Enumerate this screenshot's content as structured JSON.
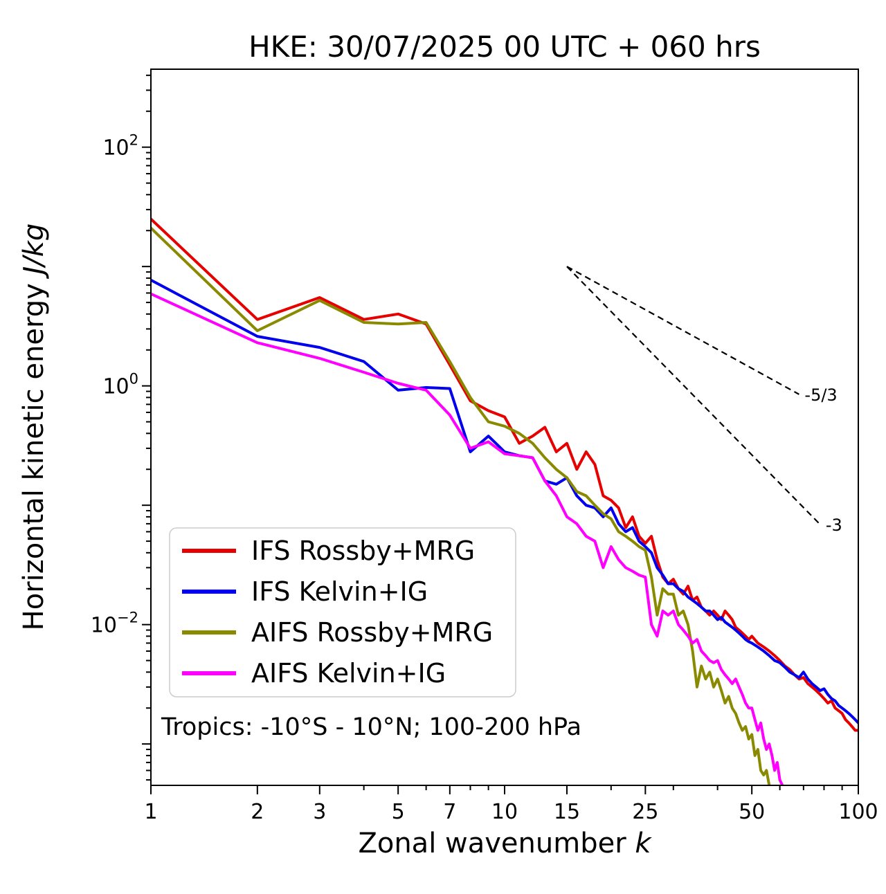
{
  "title": "HKE: 30/07/2025 00 UTC + 060 hrs",
  "annotation": "Tropics: -10°S - 10°N; 100-200 hPa",
  "labels": {
    "xlabel_main": "Zonal wavenumber ",
    "xlabel_italic": "k",
    "ylabel_main": "Horizontal kinetic energy ",
    "ylabel_italic": "J/kg"
  },
  "legend": {
    "position": "lower left",
    "items": [
      {
        "label": "IFS Rossby+MRG",
        "color": "#e60000"
      },
      {
        "label": "IFS Kelvin+IG",
        "color": "#0000ee"
      },
      {
        "label": "AIFS Rossby+MRG",
        "color": "#8a8a00"
      },
      {
        "label": "AIFS Kelvin+IG",
        "color": "#ff00ff"
      }
    ]
  },
  "chart_data": {
    "type": "line",
    "title": "HKE: 30/07/2025 00 UTC + 060 hrs",
    "xlabel": "Zonal wavenumber k",
    "ylabel": "Horizontal kinetic energy J/kg",
    "xscale": "log",
    "yscale": "log",
    "xlim": [
      1,
      100
    ],
    "ylim": [
      0.00045,
      450
    ],
    "grid": false,
    "legend_position": "lower left",
    "xticks_labeled": [
      1,
      2,
      3,
      5,
      7,
      10,
      15,
      25,
      50,
      100
    ],
    "xticks_minor": [
      4,
      6,
      8,
      9,
      20,
      30,
      40,
      60,
      70,
      80,
      90
    ],
    "ytick_label_exponents": [
      2,
      0,
      -2
    ],
    "ytick_decades": [
      2,
      1,
      0,
      -1,
      -2,
      -3
    ],
    "reference_lines": [
      {
        "label": "-5/3",
        "x": [
          15,
          68
        ],
        "y": [
          10,
          0.85
        ]
      },
      {
        "label": "-3",
        "x": [
          15,
          78
        ],
        "y": [
          10,
          0.069
        ]
      }
    ],
    "series": [
      {
        "name": "IFS Rossby+MRG",
        "color": "#e60000",
        "k": [
          1,
          2,
          3,
          4,
          5,
          6,
          7,
          8,
          9,
          10,
          11,
          12,
          13,
          14,
          15,
          16,
          17,
          18,
          19,
          20,
          21,
          22,
          23,
          24,
          25,
          26,
          27,
          28,
          29,
          30,
          31,
          32,
          33,
          34,
          35,
          36,
          37,
          38,
          39,
          40,
          41,
          42,
          43,
          44,
          45,
          46,
          47,
          48,
          49,
          50,
          52,
          54,
          56,
          58,
          60,
          62,
          64,
          66,
          68,
          70,
          72,
          74,
          76,
          78,
          80,
          82,
          84,
          86,
          88,
          90,
          92,
          94,
          96,
          98,
          100
        ],
        "v": [
          25,
          3.6,
          5.5,
          3.6,
          4.0,
          3.3,
          1.5,
          0.75,
          0.62,
          0.55,
          0.33,
          0.38,
          0.45,
          0.28,
          0.33,
          0.2,
          0.28,
          0.22,
          0.12,
          0.11,
          0.095,
          0.065,
          0.08,
          0.055,
          0.048,
          0.055,
          0.035,
          0.025,
          0.022,
          0.024,
          0.02,
          0.018,
          0.021,
          0.016,
          0.017,
          0.014,
          0.013,
          0.012,
          0.013,
          0.012,
          0.011,
          0.013,
          0.012,
          0.011,
          0.0095,
          0.009,
          0.0085,
          0.008,
          0.0075,
          0.008,
          0.007,
          0.0065,
          0.006,
          0.0055,
          0.005,
          0.0045,
          0.0042,
          0.0038,
          0.0035,
          0.0036,
          0.0032,
          0.003,
          0.0028,
          0.0026,
          0.0024,
          0.0022,
          0.0023,
          0.002,
          0.0019,
          0.0018,
          0.0016,
          0.0015,
          0.0014,
          0.0013,
          0.0013
        ]
      },
      {
        "name": "IFS Kelvin+IG",
        "color": "#0000ee",
        "k": [
          1,
          2,
          3,
          4,
          5,
          6,
          7,
          8,
          9,
          10,
          11,
          12,
          13,
          14,
          15,
          16,
          17,
          18,
          19,
          20,
          21,
          22,
          23,
          24,
          25,
          26,
          27,
          28,
          29,
          30,
          31,
          32,
          33,
          34,
          35,
          36,
          37,
          38,
          39,
          40,
          41,
          42,
          43,
          44,
          45,
          46,
          47,
          48,
          49,
          50,
          52,
          54,
          56,
          58,
          60,
          62,
          64,
          66,
          68,
          70,
          72,
          74,
          76,
          78,
          80,
          82,
          84,
          86,
          88,
          90,
          92,
          94,
          96,
          98,
          100
        ],
        "v": [
          7.7,
          2.6,
          2.1,
          1.6,
          0.92,
          0.97,
          0.95,
          0.28,
          0.38,
          0.28,
          0.26,
          0.25,
          0.16,
          0.15,
          0.17,
          0.12,
          0.1,
          0.095,
          0.08,
          0.095,
          0.07,
          0.06,
          0.065,
          0.05,
          0.045,
          0.04,
          0.03,
          0.026,
          0.022,
          0.022,
          0.02,
          0.019,
          0.017,
          0.016,
          0.015,
          0.014,
          0.013,
          0.013,
          0.012,
          0.011,
          0.0115,
          0.0105,
          0.01,
          0.0095,
          0.009,
          0.0085,
          0.008,
          0.0075,
          0.0072,
          0.007,
          0.0065,
          0.006,
          0.0055,
          0.005,
          0.0048,
          0.0044,
          0.004,
          0.0038,
          0.0036,
          0.004,
          0.0035,
          0.0032,
          0.003,
          0.0028,
          0.0029,
          0.0026,
          0.0024,
          0.0023,
          0.0021,
          0.002,
          0.0019,
          0.0018,
          0.0017,
          0.0016,
          0.0015
        ]
      },
      {
        "name": "AIFS Rossby+MRG",
        "color": "#8a8a00",
        "k": [
          1,
          2,
          3,
          4,
          5,
          6,
          7,
          8,
          9,
          10,
          11,
          12,
          13,
          14,
          15,
          16,
          17,
          18,
          19,
          20,
          21,
          22,
          23,
          24,
          25,
          26,
          27,
          28,
          29,
          30,
          31,
          32,
          33,
          34,
          35,
          36,
          37,
          38,
          39,
          40,
          41,
          42,
          43,
          44,
          45,
          46,
          47,
          48,
          49,
          50,
          51,
          52,
          53,
          54,
          55,
          56,
          57
        ],
        "v": [
          21,
          2.9,
          5.2,
          3.4,
          3.3,
          3.4,
          1.6,
          0.8,
          0.5,
          0.46,
          0.4,
          0.33,
          0.25,
          0.2,
          0.17,
          0.13,
          0.12,
          0.1,
          0.085,
          0.077,
          0.06,
          0.055,
          0.05,
          0.045,
          0.042,
          0.025,
          0.012,
          0.02,
          0.018,
          0.018,
          0.012,
          0.013,
          0.01,
          0.006,
          0.003,
          0.0045,
          0.0035,
          0.004,
          0.003,
          0.0035,
          0.0028,
          0.0022,
          0.0025,
          0.002,
          0.0018,
          0.0015,
          0.0013,
          0.0014,
          0.0011,
          0.0012,
          0.0008,
          0.0009,
          0.0006,
          0.00055,
          0.0006,
          0.00045,
          0.0004
        ]
      },
      {
        "name": "AIFS Kelvin+IG",
        "color": "#ff00ff",
        "k": [
          1,
          2,
          3,
          4,
          5,
          6,
          7,
          8,
          9,
          10,
          11,
          12,
          13,
          14,
          15,
          16,
          17,
          18,
          19,
          20,
          21,
          22,
          23,
          24,
          25,
          26,
          27,
          28,
          29,
          30,
          31,
          32,
          33,
          34,
          35,
          36,
          37,
          38,
          39,
          40,
          41,
          42,
          43,
          44,
          45,
          46,
          47,
          48,
          49,
          50,
          51,
          52,
          53,
          54,
          55,
          56,
          57,
          58,
          59,
          60,
          61,
          62
        ],
        "v": [
          5.9,
          2.3,
          1.7,
          1.3,
          1.05,
          0.92,
          0.57,
          0.3,
          0.34,
          0.27,
          0.26,
          0.25,
          0.16,
          0.12,
          0.08,
          0.07,
          0.055,
          0.05,
          0.03,
          0.045,
          0.035,
          0.03,
          0.028,
          0.026,
          0.025,
          0.01,
          0.008,
          0.013,
          0.012,
          0.013,
          0.01,
          0.009,
          0.008,
          0.007,
          0.0075,
          0.006,
          0.0055,
          0.005,
          0.0048,
          0.005,
          0.0042,
          0.0038,
          0.0035,
          0.0032,
          0.0035,
          0.003,
          0.0026,
          0.0022,
          0.002,
          0.002,
          0.0016,
          0.0013,
          0.0015,
          0.0011,
          0.0009,
          0.001,
          0.0008,
          0.0006,
          0.0007,
          0.0005,
          0.00045,
          0.0004
        ]
      }
    ]
  }
}
